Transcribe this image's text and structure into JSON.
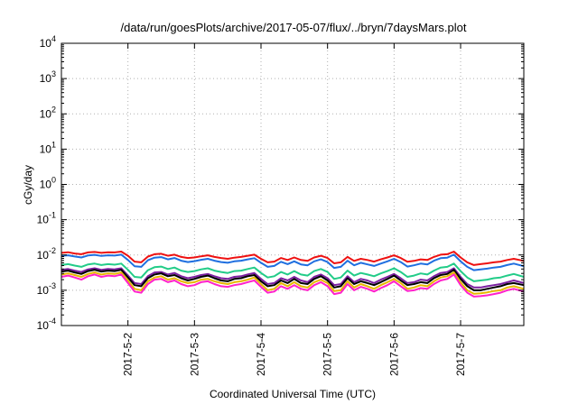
{
  "chart_data": {
    "type": "line",
    "title": "/data/run/goesPlots/archive/2017-05-07/flux/../bryn/7daysMars.plot",
    "xlabel": "Coordinated Universal Time (UTC)",
    "ylabel": "cGy/day",
    "yscale": "log",
    "ylim": [
      0.0001,
      10000
    ],
    "xlim": [
      1.0,
      7.95
    ],
    "grid": true,
    "y_ticks": [
      {
        "value": 0.0001,
        "base": "10",
        "exp": "-4"
      },
      {
        "value": 0.001,
        "base": "10",
        "exp": "-3"
      },
      {
        "value": 0.01,
        "base": "10",
        "exp": "-2"
      },
      {
        "value": 0.1,
        "base": "10",
        "exp": "-1"
      },
      {
        "value": 1,
        "base": "10",
        "exp": "0"
      },
      {
        "value": 10,
        "base": "10",
        "exp": "1"
      },
      {
        "value": 100,
        "base": "10",
        "exp": "2"
      },
      {
        "value": 1000,
        "base": "10",
        "exp": "3"
      },
      {
        "value": 10000,
        "base": "10",
        "exp": "4"
      }
    ],
    "x_ticks": [
      {
        "value": 2,
        "label": "2017-5-2"
      },
      {
        "value": 3,
        "label": "2017-5-3"
      },
      {
        "value": 4,
        "label": "2017-5-4"
      },
      {
        "value": 5,
        "label": "2017-5-5"
      },
      {
        "value": 6,
        "label": "2017-5-6"
      },
      {
        "value": 7,
        "label": "2017-5-7"
      }
    ],
    "x": [
      1.0,
      1.1,
      1.2,
      1.3,
      1.4,
      1.5,
      1.6,
      1.7,
      1.8,
      1.9,
      2.0,
      2.1,
      2.2,
      2.3,
      2.4,
      2.5,
      2.6,
      2.7,
      2.8,
      2.9,
      3.0,
      3.1,
      3.2,
      3.3,
      3.4,
      3.5,
      3.6,
      3.7,
      3.8,
      3.9,
      4.0,
      4.1,
      4.2,
      4.3,
      4.4,
      4.5,
      4.6,
      4.7,
      4.8,
      4.9,
      5.0,
      5.1,
      5.2,
      5.3,
      5.4,
      5.5,
      5.6,
      5.7,
      5.8,
      5.9,
      6.0,
      6.1,
      6.2,
      6.3,
      6.4,
      6.5,
      6.6,
      6.7,
      6.8,
      6.9,
      7.0,
      7.1,
      7.2,
      7.3,
      7.4,
      7.5,
      7.6,
      7.7,
      7.8,
      7.95
    ],
    "series": [
      {
        "color": "#ee1111",
        "values": [
          0.0115,
          0.012,
          0.011,
          0.0105,
          0.0118,
          0.0122,
          0.0115,
          0.012,
          0.0118,
          0.0125,
          0.0095,
          0.0065,
          0.0062,
          0.009,
          0.0105,
          0.0108,
          0.0095,
          0.0102,
          0.0088,
          0.0082,
          0.0085,
          0.0092,
          0.0098,
          0.0088,
          0.0082,
          0.0078,
          0.0084,
          0.0088,
          0.0095,
          0.0102,
          0.0078,
          0.0062,
          0.0065,
          0.0082,
          0.0072,
          0.0085,
          0.0072,
          0.0068,
          0.0085,
          0.0095,
          0.0082,
          0.0058,
          0.0062,
          0.0088,
          0.0068,
          0.0078,
          0.0072,
          0.0065,
          0.0075,
          0.0085,
          0.0098,
          0.0082,
          0.0064,
          0.0068,
          0.0075,
          0.0072,
          0.0088,
          0.0102,
          0.0105,
          0.0125,
          0.0085,
          0.0062,
          0.0052,
          0.0055,
          0.0058,
          0.0062,
          0.0065,
          0.0072,
          0.0078,
          0.0068
        ]
      },
      {
        "color": "#1f6fe0",
        "values": [
          0.0095,
          0.0098,
          0.0091,
          0.0085,
          0.0097,
          0.0101,
          0.0094,
          0.0098,
          0.0096,
          0.0102,
          0.0072,
          0.0048,
          0.0046,
          0.0071,
          0.0084,
          0.0087,
          0.0075,
          0.0082,
          0.0069,
          0.0063,
          0.0067,
          0.0073,
          0.0078,
          0.0069,
          0.0063,
          0.006,
          0.0066,
          0.0069,
          0.0075,
          0.0081,
          0.006,
          0.0046,
          0.0049,
          0.0064,
          0.0055,
          0.0066,
          0.0054,
          0.0051,
          0.0066,
          0.0075,
          0.0063,
          0.0043,
          0.0046,
          0.0069,
          0.0051,
          0.006,
          0.0054,
          0.0049,
          0.0057,
          0.0066,
          0.0078,
          0.0063,
          0.0047,
          0.0051,
          0.0057,
          0.0054,
          0.0069,
          0.0081,
          0.0084,
          0.0102,
          0.0066,
          0.0046,
          0.0037,
          0.0039,
          0.0041,
          0.0044,
          0.0046,
          0.0052,
          0.0057,
          0.0048
        ]
      },
      {
        "color": "#22cc88",
        "values": [
          0.0052,
          0.0055,
          0.005,
          0.0046,
          0.0054,
          0.0057,
          0.0052,
          0.0055,
          0.0053,
          0.0057,
          0.0038,
          0.0024,
          0.0023,
          0.0037,
          0.0045,
          0.0047,
          0.004,
          0.0044,
          0.0036,
          0.0033,
          0.0035,
          0.0039,
          0.0042,
          0.0036,
          0.0033,
          0.0031,
          0.0035,
          0.0036,
          0.004,
          0.0044,
          0.0031,
          0.0023,
          0.0025,
          0.0033,
          0.0028,
          0.0035,
          0.0028,
          0.0026,
          0.0035,
          0.004,
          0.0033,
          0.0021,
          0.0023,
          0.0036,
          0.0026,
          0.0031,
          0.0028,
          0.0025,
          0.003,
          0.0035,
          0.0042,
          0.0033,
          0.0024,
          0.0026,
          0.003,
          0.0028,
          0.0036,
          0.0044,
          0.0046,
          0.0057,
          0.0035,
          0.0023,
          0.0018,
          0.0019,
          0.002,
          0.0022,
          0.0023,
          0.0026,
          0.0029,
          0.0024
        ]
      },
      {
        "color": "#7a1fa0",
        "values": [
          0.0038,
          0.004,
          0.0036,
          0.0033,
          0.0039,
          0.0042,
          0.0038,
          0.004,
          0.0039,
          0.0042,
          0.0026,
          0.0016,
          0.0015,
          0.0025,
          0.0032,
          0.0033,
          0.0028,
          0.0031,
          0.0025,
          0.0022,
          0.0024,
          0.0027,
          0.0029,
          0.0025,
          0.0022,
          0.0021,
          0.0024,
          0.0025,
          0.0028,
          0.0031,
          0.0021,
          0.0015,
          0.0016,
          0.0022,
          0.0019,
          0.0024,
          0.0019,
          0.0017,
          0.0024,
          0.0028,
          0.0022,
          0.0014,
          0.0015,
          0.0025,
          0.0017,
          0.0021,
          0.0019,
          0.0016,
          0.002,
          0.0024,
          0.0029,
          0.0022,
          0.0016,
          0.0017,
          0.002,
          0.0019,
          0.0025,
          0.0031,
          0.0033,
          0.0042,
          0.0024,
          0.0015,
          0.0012,
          0.0012,
          0.0013,
          0.0014,
          0.0015,
          0.0017,
          0.0019,
          0.0016
        ]
      },
      {
        "color": "#000000",
        "values": [
          0.0034,
          0.0036,
          0.0032,
          0.0029,
          0.0035,
          0.0038,
          0.0034,
          0.0036,
          0.0035,
          0.0038,
          0.0023,
          0.0014,
          0.0013,
          0.0022,
          0.0028,
          0.003,
          0.0025,
          0.0027,
          0.0022,
          0.0019,
          0.0021,
          0.0024,
          0.0026,
          0.0022,
          0.0019,
          0.0018,
          0.0021,
          0.0022,
          0.0025,
          0.0027,
          0.0018,
          0.0013,
          0.0014,
          0.0019,
          0.0016,
          0.0021,
          0.0016,
          0.0015,
          0.0021,
          0.0025,
          0.0019,
          0.0012,
          0.0013,
          0.0022,
          0.0015,
          0.0018,
          0.0016,
          0.0014,
          0.0017,
          0.0021,
          0.0026,
          0.0019,
          0.0014,
          0.0015,
          0.0017,
          0.0016,
          0.0022,
          0.0027,
          0.0029,
          0.0038,
          0.0021,
          0.0013,
          0.001,
          0.001,
          0.0011,
          0.0012,
          0.0013,
          0.0015,
          0.0016,
          0.0014
        ]
      },
      {
        "color": "#e6b800",
        "values": [
          0.0028,
          0.003,
          0.0027,
          0.0024,
          0.0029,
          0.0032,
          0.0028,
          0.003,
          0.0029,
          0.0032,
          0.0019,
          0.0011,
          0.001,
          0.0018,
          0.0023,
          0.0025,
          0.002,
          0.0022,
          0.0018,
          0.0016,
          0.0017,
          0.002,
          0.0021,
          0.0018,
          0.0016,
          0.0015,
          0.0017,
          0.0018,
          0.002,
          0.0023,
          0.0015,
          0.001,
          0.0011,
          0.0016,
          0.0013,
          0.0017,
          0.0013,
          0.0012,
          0.0017,
          0.002,
          0.0016,
          0.00095,
          0.001,
          0.0018,
          0.0012,
          0.0015,
          0.0013,
          0.0011,
          0.0014,
          0.0017,
          0.0021,
          0.0016,
          0.0011,
          0.0012,
          0.0014,
          0.0013,
          0.0018,
          0.0023,
          0.0025,
          0.0032,
          0.0017,
          0.001,
          0.0008,
          0.00082,
          0.00087,
          0.00095,
          0.001,
          0.0012,
          0.0013,
          0.0011
        ]
      },
      {
        "color": "#ff22cc",
        "values": [
          0.0024,
          0.0026,
          0.0023,
          0.002,
          0.0025,
          0.0028,
          0.0024,
          0.0026,
          0.0025,
          0.0028,
          0.0016,
          0.00092,
          0.00085,
          0.0015,
          0.002,
          0.0021,
          0.0017,
          0.0019,
          0.0015,
          0.0013,
          0.0014,
          0.0017,
          0.0018,
          0.0015,
          0.0013,
          0.00125,
          0.0014,
          0.0015,
          0.0017,
          0.0019,
          0.00125,
          0.00085,
          0.00092,
          0.0013,
          0.0011,
          0.0014,
          0.0011,
          0.001,
          0.0014,
          0.0017,
          0.0013,
          0.00078,
          0.00085,
          0.0015,
          0.001,
          0.00125,
          0.0011,
          0.00092,
          0.00115,
          0.0014,
          0.0018,
          0.0013,
          0.00095,
          0.001,
          0.00115,
          0.0011,
          0.0015,
          0.0019,
          0.0021,
          0.0028,
          0.0014,
          0.00085,
          0.00066,
          0.00068,
          0.00072,
          0.00078,
          0.00085,
          0.001,
          0.0011,
          0.00092
        ]
      }
    ]
  }
}
